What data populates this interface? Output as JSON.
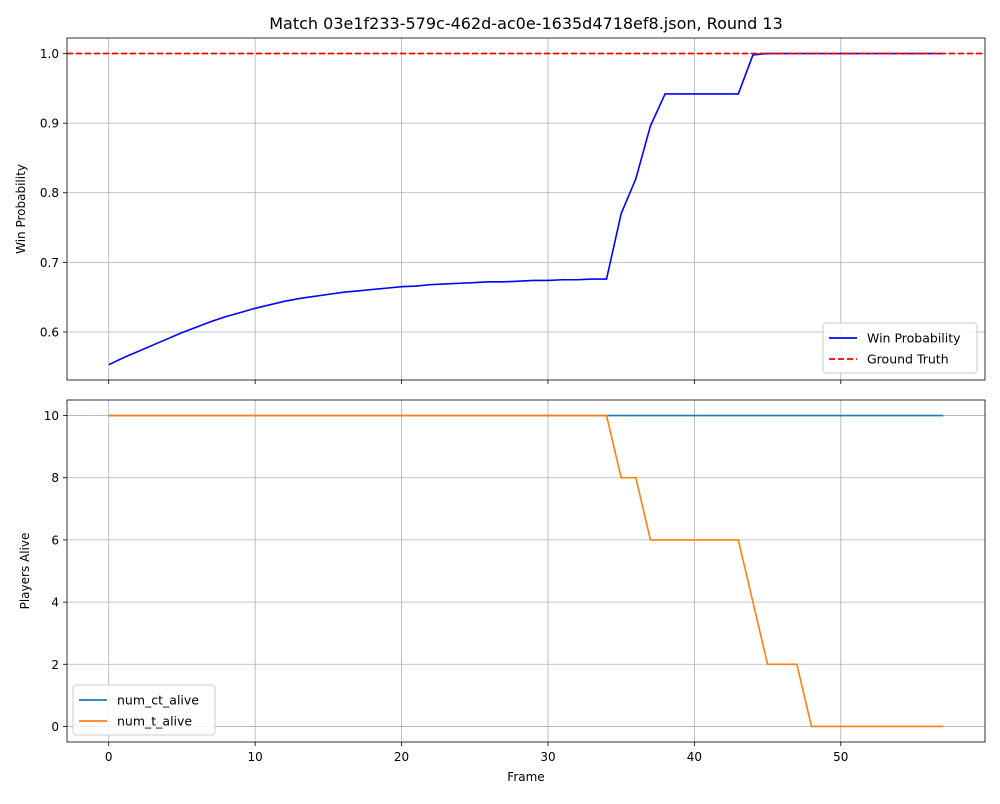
{
  "figure": {
    "title": "Match 03e1f233-579c-462d-ac0e-1635d4718ef8.json, Round 13"
  },
  "colors": {
    "win_probability": "#0000ff",
    "ground_truth": "#ff0000",
    "num_ct_alive": "#1f77b4",
    "num_t_alive": "#ff7f0e",
    "grid": "#b0b0b0"
  },
  "chart_data": [
    {
      "type": "line",
      "title": "Match 03e1f233-579c-462d-ac0e-1635d4718ef8.json, Round 13",
      "xlabel": "",
      "ylabel": "Win Probability",
      "xlim": [
        -2.85,
        59.85
      ],
      "ylim": [
        0.531,
        1.0223
      ],
      "xticks": [
        0,
        10,
        20,
        30,
        40,
        50
      ],
      "yticks": [
        0.6,
        0.7,
        0.8,
        0.9,
        1.0
      ],
      "ytick_labels": [
        "0.6",
        "0.7",
        "0.8",
        "0.9",
        "1.0"
      ],
      "grid": true,
      "legend": "lower-right",
      "series": [
        {
          "name": "Win Probability",
          "style": "solid",
          "color": "#0000ff",
          "x": [
            0,
            1,
            2,
            3,
            4,
            5,
            6,
            7,
            8,
            9,
            10,
            11,
            12,
            13,
            14,
            15,
            16,
            17,
            18,
            19,
            20,
            21,
            22,
            23,
            24,
            25,
            26,
            27,
            28,
            29,
            30,
            31,
            32,
            33,
            34,
            35,
            36,
            37,
            38,
            39,
            40,
            41,
            42,
            43,
            44,
            45,
            46,
            47,
            48,
            49,
            50,
            51,
            52,
            53,
            54,
            55,
            56,
            57
          ],
          "y": [
            0.553,
            0.563,
            0.572,
            0.581,
            0.59,
            0.599,
            0.607,
            0.615,
            0.622,
            0.628,
            0.634,
            0.639,
            0.644,
            0.648,
            0.651,
            0.654,
            0.657,
            0.659,
            0.661,
            0.663,
            0.665,
            0.666,
            0.668,
            0.669,
            0.67,
            0.671,
            0.672,
            0.672,
            0.673,
            0.674,
            0.674,
            0.675,
            0.675,
            0.676,
            0.676,
            0.77,
            0.82,
            0.896,
            0.942,
            0.942,
            0.942,
            0.942,
            0.942,
            0.942,
            0.998,
            1.0,
            1.0,
            1.0,
            1.0,
            1.0,
            1.0,
            1.0,
            1.0,
            1.0,
            1.0,
            1.0,
            1.0,
            1.0
          ]
        },
        {
          "name": "Ground Truth",
          "style": "dashed",
          "color": "#ff0000",
          "hline": 1.0
        }
      ]
    },
    {
      "type": "line",
      "title": "",
      "xlabel": "Frame",
      "ylabel": "Players Alive",
      "xlim": [
        -2.85,
        59.85
      ],
      "ylim": [
        -0.5,
        10.5
      ],
      "xticks": [
        0,
        10,
        20,
        30,
        40,
        50
      ],
      "yticks": [
        0,
        2,
        4,
        6,
        8,
        10
      ],
      "ytick_labels": [
        "0",
        "2",
        "4",
        "6",
        "8",
        "10"
      ],
      "grid": true,
      "legend": "lower-left",
      "series": [
        {
          "name": "num_ct_alive",
          "style": "solid",
          "color": "#1f77b4",
          "x": [
            0,
            57
          ],
          "y": [
            10,
            10
          ]
        },
        {
          "name": "num_t_alive",
          "style": "solid",
          "color": "#ff7f0e",
          "x": [
            0,
            34,
            35,
            36,
            37,
            43,
            45,
            47,
            48,
            57
          ],
          "y": [
            10,
            10,
            8,
            8,
            6,
            6,
            2,
            2,
            0,
            0
          ]
        }
      ]
    }
  ]
}
